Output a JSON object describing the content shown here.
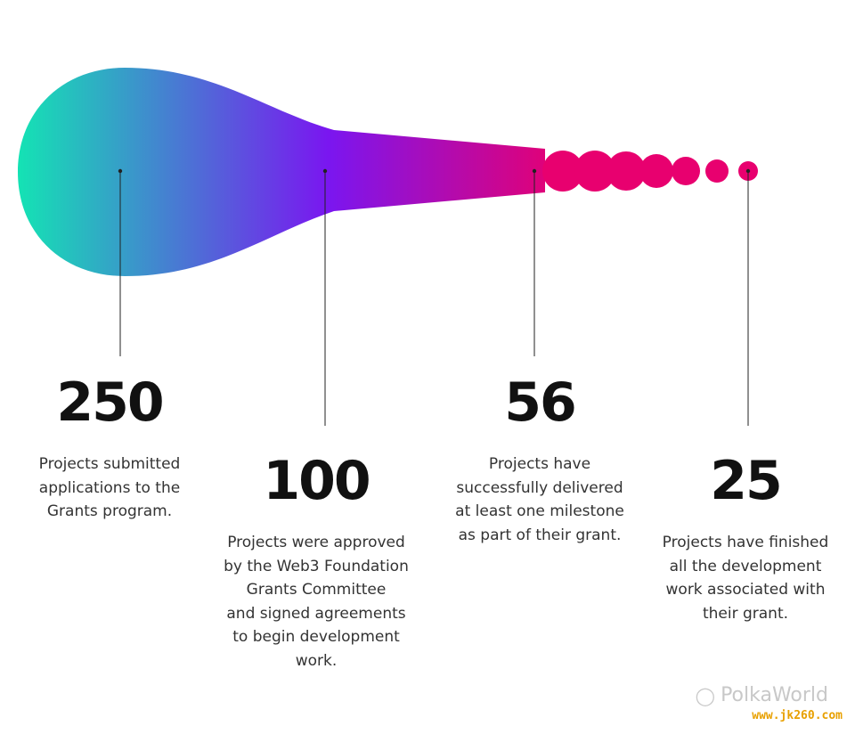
{
  "stages": [
    {
      "value": "250",
      "text": "Projects submitted\napplications to the\nGrants program."
    },
    {
      "value": "100",
      "text": "Projects were approved\nby the Web3 Foundation\nGrants Committee\nand signed agreements\nto begin development\nwork."
    },
    {
      "value": "56",
      "text": "Projects have\nsuccessfully delivered\nat least one milestone\nas part of their grant."
    },
    {
      "value": "25",
      "text": "Projects have finished\nall the development\nwork associated with\ntheir grant."
    }
  ],
  "colors": {
    "start": "#14e3b4",
    "mid": "#7a16f0",
    "end": "#e8006f",
    "line": "#222222"
  },
  "icons": {
    "watermark": "wechat-icon"
  },
  "watermark": {
    "brand": "PolkaWorld",
    "site": "www.jk260.com"
  }
}
